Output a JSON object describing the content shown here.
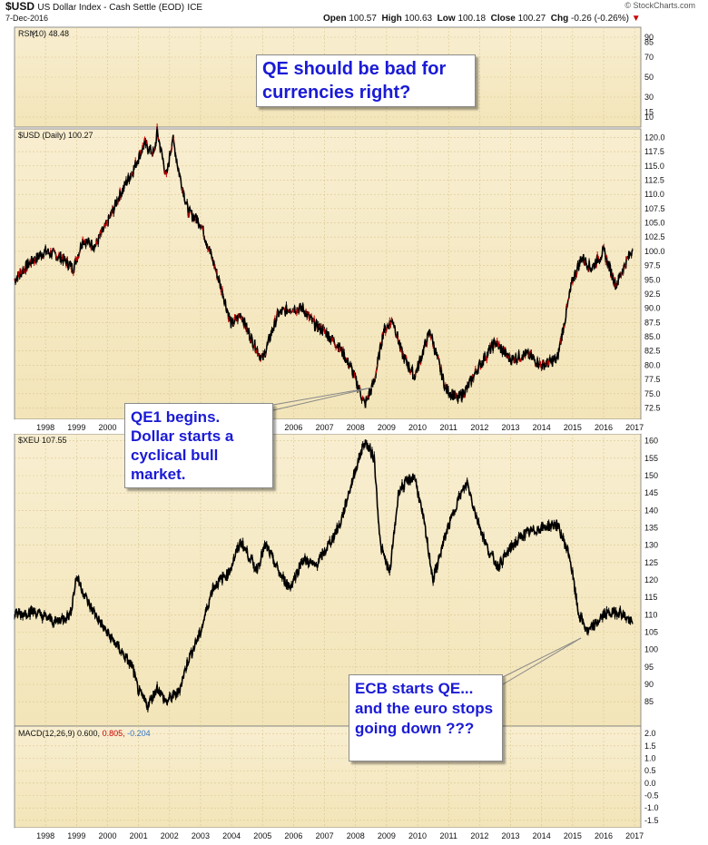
{
  "header": {
    "symbol": "$USD",
    "description": "US Dollar Index - Cash Settle (EOD)",
    "exchange": "ICE",
    "date": "7-Dec-2016",
    "open_label": "Open",
    "open": "100.57",
    "high_label": "High",
    "high": "100.63",
    "low_label": "Low",
    "low": "100.18",
    "close_label": "Close",
    "close": "100.27",
    "chg_label": "Chg",
    "chg": "-0.26 (-0.26%)",
    "source": "© StockCharts.com"
  },
  "colors": {
    "background": "#f3e5b9",
    "price": "#000000",
    "down_bars": "#cc0000",
    "callout_text": "#1a1ad6",
    "macd_signal": "#cc0000",
    "macd_hist": "#3377cc"
  },
  "callouts": {
    "qe_bad": "QE should be bad for currencies right?",
    "qe1": "QE1 begins. Dollar starts a cyclical bull market.",
    "ecb": "ECB starts QE... and the euro stops going down ???"
  },
  "chart_data": [
    {
      "type": "line",
      "panel": "rsi",
      "label": "RSI(10) 48.48",
      "y_ticks": [
        10,
        30,
        50,
        70,
        90
      ],
      "y_ticks_extra": [
        15,
        85
      ]
    },
    {
      "type": "line",
      "panel": "usd",
      "label": "$USD (Daily) 100.27",
      "ylim": [
        70.5,
        121.5
      ],
      "y_ticks": [
        72.5,
        75.0,
        77.5,
        80.0,
        82.5,
        85.0,
        87.5,
        90.0,
        92.5,
        95.0,
        97.5,
        100.0,
        102.5,
        105.0,
        107.5,
        110.0,
        112.5,
        115.0,
        117.5,
        120.0
      ],
      "x_ticks": [
        "1998",
        "1999",
        "2000",
        "2001",
        "2002",
        "2003",
        "2004",
        "2005",
        "2006",
        "2007",
        "2008",
        "2009",
        "2010",
        "2011",
        "2012",
        "2013",
        "2014",
        "2015",
        "2016",
        "2017"
      ],
      "x": [
        1997.0,
        1997.5,
        1998.0,
        1998.5,
        1998.9,
        1999.2,
        1999.6,
        2000.0,
        2000.4,
        2000.8,
        2001.2,
        2001.5,
        2001.6,
        2001.9,
        2002.1,
        2002.3,
        2002.6,
        2003.0,
        2003.3,
        2003.7,
        2004.0,
        2004.3,
        2004.6,
        2005.0,
        2005.5,
        2005.9,
        2006.3,
        2006.7,
        2007.0,
        2007.5,
        2007.9,
        2008.3,
        2008.6,
        2008.9,
        2009.2,
        2009.5,
        2009.9,
        2010.4,
        2010.9,
        2011.3,
        2011.6,
        2012.0,
        2012.5,
        2013.0,
        2013.5,
        2014.0,
        2014.5,
        2015.0,
        2015.3,
        2015.6,
        2016.0,
        2016.4,
        2016.8,
        2016.93
      ],
      "values": [
        95,
        98,
        100,
        99,
        97,
        102,
        101,
        105,
        110,
        114,
        119,
        117,
        121,
        113,
        120,
        114,
        107,
        105,
        100,
        93,
        87,
        89,
        85,
        81,
        89,
        90,
        90,
        87,
        86,
        83,
        79,
        73,
        77,
        86,
        88,
        82,
        78,
        86,
        76,
        74,
        76,
        80,
        84,
        81,
        82,
        80,
        81,
        95,
        99,
        97,
        100,
        94,
        99,
        100.27
      ]
    },
    {
      "type": "line",
      "panel": "xeu",
      "label": "$XEU 107.55",
      "ylim": [
        78,
        162
      ],
      "y_ticks": [
        85,
        90,
        95,
        100,
        105,
        110,
        115,
        120,
        125,
        130,
        135,
        140,
        145,
        150,
        155,
        160
      ],
      "x": [
        1997.0,
        1997.6,
        1998.3,
        1998.8,
        1999.0,
        1999.4,
        1999.9,
        2000.4,
        2000.8,
        2001.0,
        2001.3,
        2001.6,
        2001.9,
        2002.3,
        2002.6,
        2003.0,
        2003.4,
        2003.9,
        2004.3,
        2004.8,
        2005.1,
        2005.6,
        2005.9,
        2006.3,
        2006.7,
        2007.0,
        2007.5,
        2008.0,
        2008.3,
        2008.6,
        2008.8,
        2009.1,
        2009.4,
        2009.9,
        2010.2,
        2010.5,
        2010.9,
        2011.3,
        2011.6,
        2011.9,
        2012.3,
        2012.6,
        2013.0,
        2013.4,
        2014.0,
        2014.5,
        2014.9,
        2015.2,
        2015.5,
        2016.0,
        2016.5,
        2016.93
      ],
      "values": [
        110,
        111,
        108,
        110,
        121,
        113,
        106,
        100,
        95,
        88,
        84,
        89,
        85,
        88,
        97,
        105,
        118,
        122,
        131,
        123,
        130,
        121,
        118,
        126,
        124,
        128,
        136,
        152,
        160,
        155,
        130,
        122,
        146,
        150,
        137,
        120,
        133,
        143,
        148,
        138,
        128,
        124,
        129,
        133,
        135,
        136,
        127,
        110,
        105,
        110,
        111,
        107.55
      ]
    },
    {
      "type": "line",
      "panel": "macd",
      "label": "MACD(12,26,9)",
      "macd": "0.600",
      "signal": "0.805",
      "histogram": "-0.204",
      "y_ticks": [
        -1.5,
        -1.0,
        -0.5,
        0.0,
        0.5,
        1.0,
        1.5,
        2.0
      ]
    }
  ]
}
